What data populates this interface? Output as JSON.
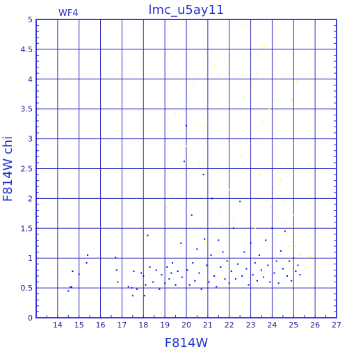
{
  "chart_data": {
    "type": "scatter",
    "title": "lmc_u5ay11",
    "panel_label": "WF4",
    "xlabel": "F814W",
    "ylabel": "F814W chi",
    "xlim": [
      13,
      27
    ],
    "ylim": [
      0,
      5
    ],
    "xticks": [
      14,
      15,
      16,
      17,
      18,
      19,
      20,
      21,
      22,
      23,
      24,
      25,
      26,
      27
    ],
    "yticks": [
      0,
      0.5,
      1,
      1.5,
      2,
      2.5,
      3,
      3.5,
      4,
      4.5,
      5
    ],
    "ytick_labels": [
      "0",
      "0.5",
      "1",
      "1.5",
      "2",
      "2.5",
      "3",
      "3.5",
      "4",
      "4.5",
      "5"
    ],
    "grid": true,
    "series": [
      {
        "color": "#0000ff",
        "points": [
          [
            14.5,
            0.45
          ],
          [
            14.6,
            0.51
          ],
          [
            14.65,
            0.52
          ],
          [
            14.7,
            0.78
          ],
          [
            15.0,
            0.73
          ],
          [
            15.35,
            0.92
          ],
          [
            15.4,
            1.05
          ],
          [
            16.7,
            1.01
          ],
          [
            16.75,
            0.8
          ],
          [
            16.8,
            0.6
          ],
          [
            17.3,
            0.52
          ],
          [
            17.45,
            0.5
          ],
          [
            17.5,
            0.37
          ],
          [
            17.55,
            0.78
          ],
          [
            17.7,
            0.48
          ],
          [
            17.9,
            0.75
          ],
          [
            18.0,
            0.7
          ],
          [
            18.05,
            0.37
          ],
          [
            18.1,
            0.55
          ],
          [
            18.2,
            1.38
          ],
          [
            18.3,
            0.85
          ],
          [
            18.45,
            0.6
          ],
          [
            18.6,
            0.8
          ],
          [
            18.75,
            0.48
          ],
          [
            18.85,
            0.72
          ],
          [
            19.0,
            0.58
          ],
          [
            19.1,
            0.85
          ],
          [
            19.2,
            0.65
          ],
          [
            19.3,
            0.75
          ],
          [
            19.35,
            0.92
          ],
          [
            19.5,
            0.55
          ],
          [
            19.6,
            0.78
          ],
          [
            19.75,
            1.25
          ],
          [
            19.8,
            0.68
          ],
          [
            19.9,
            2.62
          ],
          [
            20.0,
            3.22
          ],
          [
            20.05,
            0.8
          ],
          [
            20.15,
            0.55
          ],
          [
            20.25,
            1.72
          ],
          [
            20.3,
            0.92
          ],
          [
            20.4,
            0.62
          ],
          [
            20.5,
            1.15
          ],
          [
            20.6,
            0.75
          ],
          [
            20.7,
            0.48
          ],
          [
            20.8,
            2.4
          ],
          [
            20.85,
            1.32
          ],
          [
            20.95,
            0.88
          ],
          [
            21.05,
            0.6
          ],
          [
            21.15,
            1.05
          ],
          [
            21.2,
            2.0
          ],
          [
            21.3,
            0.7
          ],
          [
            21.4,
            0.52
          ],
          [
            21.5,
            1.3
          ],
          [
            21.6,
            0.85
          ],
          [
            21.7,
            1.1
          ],
          [
            21.8,
            0.65
          ],
          [
            21.9,
            0.95
          ],
          [
            22.0,
            0.58
          ],
          [
            22.1,
            0.78
          ],
          [
            22.2,
            1.5
          ],
          [
            22.3,
            0.65
          ],
          [
            22.4,
            0.9
          ],
          [
            22.5,
            1.95
          ],
          [
            22.6,
            0.7
          ],
          [
            22.7,
            1.1
          ],
          [
            22.8,
            0.82
          ],
          [
            22.9,
            0.55
          ],
          [
            23.0,
            1.25
          ],
          [
            23.1,
            0.72
          ],
          [
            23.2,
            0.92
          ],
          [
            23.3,
            0.62
          ],
          [
            23.4,
            1.05
          ],
          [
            23.5,
            0.8
          ],
          [
            23.6,
            0.68
          ],
          [
            23.7,
            1.3
          ],
          [
            23.8,
            0.88
          ],
          [
            23.9,
            0.6
          ],
          [
            24.0,
            1.5
          ],
          [
            24.1,
            0.75
          ],
          [
            24.2,
            0.95
          ],
          [
            24.3,
            0.58
          ],
          [
            24.4,
            1.12
          ],
          [
            24.5,
            0.82
          ],
          [
            24.6,
            1.45
          ],
          [
            24.7,
            0.7
          ],
          [
            24.8,
            0.95
          ],
          [
            24.9,
            0.62
          ],
          [
            25.0,
            1.0
          ],
          [
            25.1,
            0.78
          ],
          [
            25.2,
            0.88
          ],
          [
            25.3,
            0.72
          ]
        ]
      },
      {
        "color": "#ffff33",
        "points": [
          [
            19.1,
            1.85
          ],
          [
            19.3,
            2.05
          ],
          [
            19.5,
            3.42
          ],
          [
            20.0,
            2.88
          ],
          [
            20.1,
            2.65
          ],
          [
            20.2,
            3.85
          ],
          [
            20.35,
            3.9
          ],
          [
            20.6,
            2.6
          ],
          [
            20.75,
            3.2
          ],
          [
            20.9,
            2.95
          ],
          [
            20.95,
            1.3
          ],
          [
            21.15,
            2.3
          ],
          [
            21.3,
            4.22
          ],
          [
            21.55,
            1.75
          ],
          [
            21.7,
            1.55
          ],
          [
            21.8,
            4.3
          ],
          [
            21.95,
            3.02
          ],
          [
            22.0,
            2.15
          ],
          [
            22.2,
            1.65
          ],
          [
            22.4,
            2.55
          ],
          [
            22.55,
            2.7
          ],
          [
            22.6,
            4.05
          ],
          [
            22.7,
            3.7
          ],
          [
            22.75,
            4.9
          ],
          [
            22.95,
            1.78
          ],
          [
            23.05,
            3.95
          ],
          [
            23.1,
            3.85
          ],
          [
            23.2,
            1.5
          ],
          [
            23.3,
            4.1
          ],
          [
            23.35,
            4.4
          ],
          [
            23.45,
            2.4
          ],
          [
            23.55,
            3.28
          ],
          [
            23.65,
            4.55
          ],
          [
            23.75,
            1.95
          ],
          [
            23.85,
            3.5
          ],
          [
            23.95,
            1.85
          ],
          [
            24.05,
            2.18
          ],
          [
            24.1,
            3.65
          ],
          [
            24.2,
            2.05
          ],
          [
            24.3,
            1.68
          ],
          [
            24.4,
            2.3
          ],
          [
            24.5,
            1.58
          ],
          [
            24.6,
            1.95
          ],
          [
            24.7,
            1.4
          ],
          [
            24.8,
            1.2
          ],
          [
            24.85,
            1.55
          ],
          [
            24.9,
            3.65
          ],
          [
            25.0,
            1.72
          ],
          [
            25.1,
            1.2
          ],
          [
            25.15,
            3.95
          ],
          [
            25.3,
            1.05
          ],
          [
            25.4,
            1.75
          ],
          [
            25.55,
            0.85
          ],
          [
            25.8,
            1.02
          ]
        ]
      }
    ]
  }
}
